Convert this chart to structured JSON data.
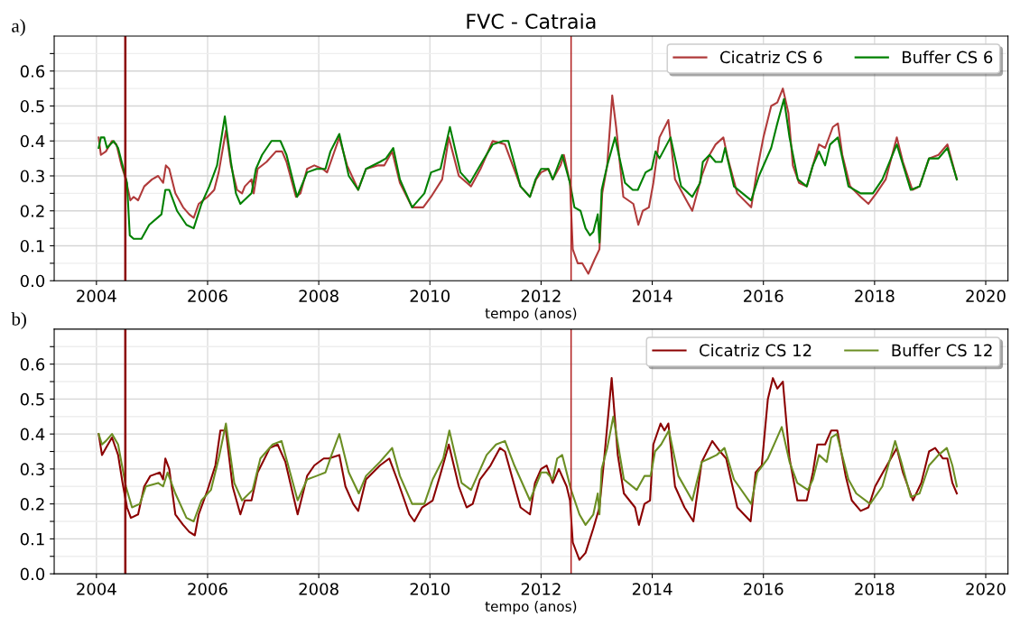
{
  "chart_data": [
    {
      "type": "line",
      "title": "FVC - Catraia",
      "xlabel": "tempo (anos)",
      "annotations": [
        "a)"
      ],
      "xlim": [
        2003.24,
        2020.4
      ],
      "ylim": [
        0,
        0.7
      ],
      "xticks": [
        2004,
        2006,
        2008,
        2010,
        2012,
        2014,
        2016,
        2018,
        2020
      ],
      "yticks": [
        {
          "value": 0,
          "label": "0.0"
        },
        {
          "value": 0.05,
          "label": null
        },
        0.1,
        {
          "value": 0.15,
          "label": null
        },
        0.2,
        {
          "value": 0.25,
          "label": null
        },
        0.3,
        {
          "value": 0.35,
          "label": null
        },
        0.4,
        {
          "value": 0.45,
          "label": null
        },
        0.5,
        {
          "value": 0.55,
          "label": null
        },
        0.6,
        {
          "value": 0.65,
          "label": null
        }
      ],
      "grid": true,
      "legend": "top right",
      "line_style": "solid",
      "marker": "none",
      "ref_lines": [
        {
          "axis": "x",
          "value": 2004.52,
          "label": null,
          "color": "#8b0000"
        },
        {
          "axis": "x",
          "value": 2012.54,
          "label": null,
          "color": "#b22222"
        }
      ],
      "series": [
        {
          "name": "Cicatriz CS 6",
          "color": "#b03a3a",
          "x": [
            2004.04,
            2004.08,
            2004.17,
            2004.28,
            2004.36,
            2004.45,
            2004.53,
            2004.61,
            2004.67,
            2004.75,
            2004.86,
            2005.0,
            2005.11,
            2005.2,
            2005.25,
            2005.31,
            2005.42,
            2005.56,
            2005.67,
            2005.75,
            2005.84,
            2006.0,
            2006.12,
            2006.2,
            2006.33,
            2006.42,
            2006.53,
            2006.62,
            2006.67,
            2006.79,
            2006.83,
            2006.9,
            2007.06,
            2007.23,
            2007.34,
            2007.42,
            2007.59,
            2007.67,
            2007.79,
            2007.92,
            2008.07,
            2008.15,
            2008.26,
            2008.37,
            2008.51,
            2008.71,
            2008.85,
            2009.07,
            2009.18,
            2009.32,
            2009.46,
            2009.68,
            2009.88,
            2010.02,
            2010.22,
            2010.34,
            2010.52,
            2010.74,
            2010.91,
            2011.13,
            2011.35,
            2011.49,
            2011.63,
            2011.8,
            2011.91,
            2012.0,
            2012.13,
            2012.21,
            2012.35,
            2012.41,
            2012.52,
            2012.57,
            2012.66,
            2012.74,
            2012.85,
            2012.96,
            2013.05,
            2013.1,
            2013.19,
            2013.28,
            2013.35,
            2013.48,
            2013.66,
            2013.75,
            2013.83,
            2013.94,
            2014.02,
            2014.13,
            2014.29,
            2014.41,
            2014.58,
            2014.72,
            2014.89,
            2015.03,
            2015.14,
            2015.28,
            2015.36,
            2015.53,
            2015.78,
            2015.89,
            2016.0,
            2016.14,
            2016.25,
            2016.35,
            2016.45,
            2016.53,
            2016.64,
            2016.78,
            2016.89,
            2017.0,
            2017.11,
            2017.25,
            2017.34,
            2017.42,
            2017.56,
            2017.75,
            2017.89,
            2018.03,
            2018.2,
            2018.4,
            2018.51,
            2018.68,
            2018.81,
            2018.98,
            2019.15,
            2019.31,
            2019.48
          ],
          "values": [
            0.41,
            0.36,
            0.37,
            0.4,
            0.39,
            0.33,
            0.29,
            0.23,
            0.24,
            0.23,
            0.27,
            0.29,
            0.3,
            0.28,
            0.33,
            0.32,
            0.25,
            0.21,
            0.19,
            0.18,
            0.22,
            0.24,
            0.26,
            0.31,
            0.43,
            0.33,
            0.26,
            0.25,
            0.27,
            0.29,
            0.25,
            0.32,
            0.34,
            0.37,
            0.37,
            0.34,
            0.24,
            0.25,
            0.32,
            0.33,
            0.32,
            0.31,
            0.36,
            0.41,
            0.33,
            0.26,
            0.32,
            0.33,
            0.33,
            0.37,
            0.28,
            0.21,
            0.21,
            0.24,
            0.29,
            0.41,
            0.3,
            0.27,
            0.32,
            0.4,
            0.39,
            0.33,
            0.27,
            0.24,
            0.29,
            0.31,
            0.32,
            0.29,
            0.33,
            0.36,
            0.28,
            0.09,
            0.05,
            0.05,
            0.02,
            0.06,
            0.09,
            0.25,
            0.33,
            0.53,
            0.44,
            0.24,
            0.22,
            0.16,
            0.2,
            0.21,
            0.28,
            0.41,
            0.46,
            0.29,
            0.24,
            0.2,
            0.3,
            0.36,
            0.39,
            0.41,
            0.35,
            0.25,
            0.21,
            0.32,
            0.41,
            0.5,
            0.51,
            0.55,
            0.48,
            0.33,
            0.28,
            0.27,
            0.33,
            0.39,
            0.38,
            0.44,
            0.45,
            0.36,
            0.27,
            0.24,
            0.22,
            0.25,
            0.29,
            0.41,
            0.34,
            0.26,
            0.27,
            0.35,
            0.36,
            0.39,
            0.29
          ]
        },
        {
          "name": "Buffer CS 6",
          "color": "#008000",
          "x": [
            2004.04,
            2004.08,
            2004.14,
            2004.19,
            2004.31,
            2004.39,
            2004.47,
            2004.55,
            2004.6,
            2004.67,
            2004.81,
            2004.95,
            2005.17,
            2005.24,
            2005.31,
            2005.45,
            2005.62,
            2005.75,
            2005.89,
            2006.03,
            2006.17,
            2006.31,
            2006.42,
            2006.51,
            2006.59,
            2006.79,
            2006.87,
            2006.98,
            2007.15,
            2007.31,
            2007.42,
            2007.61,
            2007.79,
            2007.96,
            2008.12,
            2008.21,
            2008.37,
            2008.54,
            2008.71,
            2008.85,
            2009.1,
            2009.21,
            2009.34,
            2009.46,
            2009.68,
            2009.9,
            2010.02,
            2010.19,
            2010.36,
            2010.55,
            2010.72,
            2010.94,
            2011.13,
            2011.32,
            2011.41,
            2011.63,
            2011.8,
            2011.9,
            2012.0,
            2012.13,
            2012.21,
            2012.38,
            2012.52,
            2012.6,
            2012.71,
            2012.8,
            2012.88,
            2012.94,
            2013.02,
            2013.05,
            2013.09,
            2013.19,
            2013.33,
            2013.51,
            2013.65,
            2013.74,
            2013.88,
            2013.99,
            2014.06,
            2014.13,
            2014.33,
            2014.52,
            2014.72,
            2014.86,
            2014.91,
            2015.03,
            2015.14,
            2015.25,
            2015.31,
            2015.47,
            2015.78,
            2015.92,
            2016.03,
            2016.14,
            2016.25,
            2016.37,
            2016.47,
            2016.62,
            2016.78,
            2016.89,
            2017.0,
            2017.11,
            2017.2,
            2017.34,
            2017.53,
            2017.75,
            2017.97,
            2018.14,
            2018.4,
            2018.65,
            2018.81,
            2018.98,
            2019.15,
            2019.31,
            2019.48
          ],
          "values": [
            0.38,
            0.41,
            0.41,
            0.38,
            0.4,
            0.38,
            0.33,
            0.28,
            0.13,
            0.12,
            0.12,
            0.16,
            0.19,
            0.26,
            0.26,
            0.2,
            0.16,
            0.15,
            0.22,
            0.27,
            0.33,
            0.47,
            0.34,
            0.25,
            0.22,
            0.25,
            0.32,
            0.36,
            0.4,
            0.4,
            0.36,
            0.24,
            0.31,
            0.32,
            0.32,
            0.37,
            0.42,
            0.3,
            0.26,
            0.32,
            0.34,
            0.35,
            0.38,
            0.29,
            0.21,
            0.25,
            0.31,
            0.32,
            0.44,
            0.31,
            0.28,
            0.34,
            0.39,
            0.4,
            0.4,
            0.27,
            0.24,
            0.29,
            0.32,
            0.32,
            0.29,
            0.36,
            0.28,
            0.21,
            0.2,
            0.15,
            0.13,
            0.14,
            0.19,
            0.11,
            0.26,
            0.33,
            0.41,
            0.28,
            0.26,
            0.26,
            0.31,
            0.32,
            0.37,
            0.35,
            0.41,
            0.27,
            0.24,
            0.28,
            0.34,
            0.36,
            0.34,
            0.34,
            0.38,
            0.27,
            0.23,
            0.3,
            0.34,
            0.38,
            0.45,
            0.52,
            0.41,
            0.29,
            0.27,
            0.33,
            0.37,
            0.33,
            0.39,
            0.41,
            0.27,
            0.25,
            0.25,
            0.29,
            0.39,
            0.26,
            0.27,
            0.35,
            0.35,
            0.38,
            0.29
          ]
        }
      ]
    },
    {
      "type": "line",
      "xlabel": "tempo (anos)",
      "annotations": [
        "b)"
      ],
      "xlim": [
        2003.24,
        2020.4
      ],
      "ylim": [
        0,
        0.7
      ],
      "xticks": [
        2004,
        2006,
        2008,
        2010,
        2012,
        2014,
        2016,
        2018,
        2020
      ],
      "yticks": [
        {
          "value": 0,
          "label": "0.0"
        },
        {
          "value": 0.05,
          "label": null
        },
        0.1,
        {
          "value": 0.15,
          "label": null
        },
        0.2,
        {
          "value": 0.25,
          "label": null
        },
        0.3,
        {
          "value": 0.35,
          "label": null
        },
        0.4,
        {
          "value": 0.45,
          "label": null
        },
        0.5,
        {
          "value": 0.55,
          "label": null
        },
        0.6,
        {
          "value": 0.65,
          "label": null
        }
      ],
      "grid": true,
      "legend": "top right",
      "line_style": "solid",
      "marker": "none",
      "ref_lines": [
        {
          "axis": "x",
          "value": 2004.52,
          "label": null,
          "color": "#8b0000"
        },
        {
          "axis": "x",
          "value": 2012.54,
          "label": null,
          "color": "#b22222"
        }
      ],
      "series": [
        {
          "name": "Cicatriz CS 12",
          "color": "#8b0000",
          "x": [
            2004.04,
            2004.1,
            2004.17,
            2004.28,
            2004.39,
            2004.47,
            2004.55,
            2004.62,
            2004.75,
            2004.86,
            2004.97,
            2005.14,
            2005.2,
            2005.24,
            2005.31,
            2005.42,
            2005.56,
            2005.67,
            2005.77,
            2005.84,
            2006.0,
            2006.14,
            2006.23,
            2006.33,
            2006.45,
            2006.59,
            2006.67,
            2006.79,
            2006.9,
            2007.12,
            2007.26,
            2007.4,
            2007.62,
            2007.73,
            2007.79,
            2007.92,
            2008.09,
            2008.18,
            2008.37,
            2008.48,
            2008.62,
            2008.71,
            2008.85,
            2009.1,
            2009.27,
            2009.41,
            2009.63,
            2009.72,
            2009.86,
            2010.05,
            2010.18,
            2010.34,
            2010.52,
            2010.66,
            2010.77,
            2010.9,
            2011.09,
            2011.26,
            2011.35,
            2011.49,
            2011.63,
            2011.8,
            2011.89,
            2012.0,
            2012.1,
            2012.21,
            2012.32,
            2012.46,
            2012.52,
            2012.57,
            2012.69,
            2012.8,
            2012.94,
            2013.05,
            2013.13,
            2013.27,
            2013.38,
            2013.49,
            2013.69,
            2013.76,
            2013.86,
            2013.96,
            2014.02,
            2014.15,
            2014.22,
            2014.29,
            2014.41,
            2014.58,
            2014.74,
            2014.89,
            2015.08,
            2015.22,
            2015.33,
            2015.53,
            2015.77,
            2015.86,
            2015.97,
            2016.08,
            2016.17,
            2016.25,
            2016.35,
            2016.47,
            2016.61,
            2016.78,
            2016.89,
            2016.97,
            2017.11,
            2017.22,
            2017.33,
            2017.48,
            2017.59,
            2017.75,
            2017.89,
            2018.01,
            2018.15,
            2018.4,
            2018.51,
            2018.69,
            2018.84,
            2018.98,
            2019.09,
            2019.23,
            2019.31,
            2019.4,
            2019.48
          ],
          "values": [
            0.4,
            0.34,
            0.36,
            0.39,
            0.34,
            0.26,
            0.19,
            0.16,
            0.17,
            0.25,
            0.28,
            0.29,
            0.27,
            0.33,
            0.3,
            0.17,
            0.14,
            0.12,
            0.11,
            0.17,
            0.24,
            0.31,
            0.41,
            0.41,
            0.25,
            0.17,
            0.21,
            0.21,
            0.29,
            0.36,
            0.37,
            0.32,
            0.17,
            0.24,
            0.28,
            0.31,
            0.33,
            0.33,
            0.34,
            0.25,
            0.2,
            0.18,
            0.27,
            0.31,
            0.33,
            0.27,
            0.17,
            0.15,
            0.19,
            0.21,
            0.28,
            0.37,
            0.25,
            0.19,
            0.2,
            0.27,
            0.31,
            0.36,
            0.35,
            0.27,
            0.19,
            0.17,
            0.26,
            0.3,
            0.31,
            0.26,
            0.3,
            0.25,
            0.21,
            0.09,
            0.04,
            0.06,
            0.13,
            0.19,
            0.32,
            0.56,
            0.34,
            0.23,
            0.19,
            0.14,
            0.2,
            0.21,
            0.37,
            0.43,
            0.41,
            0.43,
            0.25,
            0.19,
            0.15,
            0.32,
            0.38,
            0.35,
            0.33,
            0.19,
            0.15,
            0.29,
            0.31,
            0.5,
            0.56,
            0.53,
            0.55,
            0.33,
            0.21,
            0.21,
            0.29,
            0.37,
            0.37,
            0.41,
            0.41,
            0.28,
            0.21,
            0.18,
            0.19,
            0.25,
            0.29,
            0.36,
            0.29,
            0.21,
            0.26,
            0.35,
            0.36,
            0.33,
            0.33,
            0.26,
            0.23
          ]
        },
        {
          "name": "Buffer CS 12",
          "color": "#6b8e23",
          "x": [
            2004.04,
            2004.1,
            2004.17,
            2004.28,
            2004.39,
            2004.53,
            2004.64,
            2004.78,
            2004.89,
            2005.11,
            2005.2,
            2005.28,
            2005.42,
            2005.62,
            2005.75,
            2005.89,
            2006.06,
            2006.2,
            2006.33,
            2006.48,
            2006.62,
            2006.81,
            2006.95,
            2007.17,
            2007.33,
            2007.45,
            2007.62,
            2007.79,
            2007.96,
            2008.12,
            2008.23,
            2008.37,
            2008.54,
            2008.72,
            2008.85,
            2009.1,
            2009.32,
            2009.46,
            2009.68,
            2009.9,
            2010.05,
            2010.24,
            2010.35,
            2010.57,
            2010.74,
            2011.02,
            2011.19,
            2011.35,
            2011.52,
            2011.8,
            2012.0,
            2012.1,
            2012.21,
            2012.29,
            2012.38,
            2012.54,
            2012.69,
            2012.8,
            2012.94,
            2013.02,
            2013.05,
            2013.09,
            2013.19,
            2013.3,
            2013.49,
            2013.72,
            2013.86,
            2013.97,
            2014.05,
            2014.16,
            2014.3,
            2014.47,
            2014.72,
            2014.89,
            2015.03,
            2015.16,
            2015.3,
            2015.47,
            2015.78,
            2015.89,
            2016.08,
            2016.22,
            2016.33,
            2016.47,
            2016.61,
            2016.8,
            2016.89,
            2017.0,
            2017.14,
            2017.22,
            2017.32,
            2017.53,
            2017.67,
            2017.92,
            2018.14,
            2018.37,
            2018.48,
            2018.65,
            2018.81,
            2018.98,
            2019.15,
            2019.3,
            2019.4,
            2019.48
          ],
          "values": [
            0.4,
            0.37,
            0.38,
            0.4,
            0.37,
            0.25,
            0.19,
            0.2,
            0.25,
            0.26,
            0.25,
            0.29,
            0.23,
            0.16,
            0.15,
            0.21,
            0.24,
            0.33,
            0.43,
            0.26,
            0.21,
            0.24,
            0.33,
            0.37,
            0.38,
            0.31,
            0.21,
            0.27,
            0.28,
            0.29,
            0.34,
            0.4,
            0.29,
            0.23,
            0.28,
            0.32,
            0.36,
            0.28,
            0.2,
            0.2,
            0.27,
            0.33,
            0.41,
            0.26,
            0.24,
            0.34,
            0.37,
            0.38,
            0.31,
            0.21,
            0.29,
            0.29,
            0.27,
            0.33,
            0.34,
            0.24,
            0.17,
            0.14,
            0.17,
            0.23,
            0.17,
            0.3,
            0.36,
            0.45,
            0.27,
            0.24,
            0.28,
            0.28,
            0.35,
            0.37,
            0.41,
            0.28,
            0.21,
            0.32,
            0.33,
            0.34,
            0.36,
            0.27,
            0.2,
            0.29,
            0.33,
            0.38,
            0.42,
            0.32,
            0.26,
            0.24,
            0.27,
            0.34,
            0.32,
            0.39,
            0.4,
            0.27,
            0.23,
            0.2,
            0.25,
            0.38,
            0.32,
            0.22,
            0.23,
            0.31,
            0.34,
            0.36,
            0.31,
            0.25
          ]
        }
      ]
    }
  ]
}
